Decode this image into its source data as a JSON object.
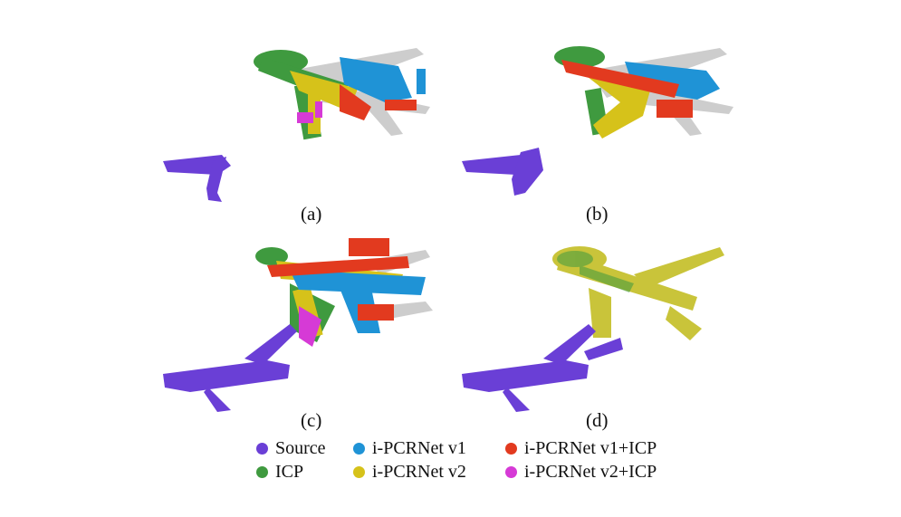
{
  "panels": [
    {
      "caption": "(a)"
    },
    {
      "caption": "(b)"
    },
    {
      "caption": "(c)"
    },
    {
      "caption": "(d)"
    }
  ],
  "legend": [
    {
      "label": "Source",
      "color": "#6a3fd6"
    },
    {
      "label": "ICP",
      "color": "#3f9a3f"
    },
    {
      "label": "i-PCRNet v1",
      "color": "#1f93d6"
    },
    {
      "label": "i-PCRNet v2",
      "color": "#d6c21a"
    },
    {
      "label": "i-PCRNet v1+ICP",
      "color": "#e23a1f"
    },
    {
      "label": "i-PCRNet v2+ICP",
      "color": "#d63ad6"
    }
  ],
  "colors": {
    "target": "#c8c8c8",
    "source": "#6a3fd6",
    "icp": "#3f9a3f",
    "v1": "#1f93d6",
    "v2": "#d6c21a",
    "v1icp": "#e23a1f",
    "v2icp": "#d63ad6"
  }
}
